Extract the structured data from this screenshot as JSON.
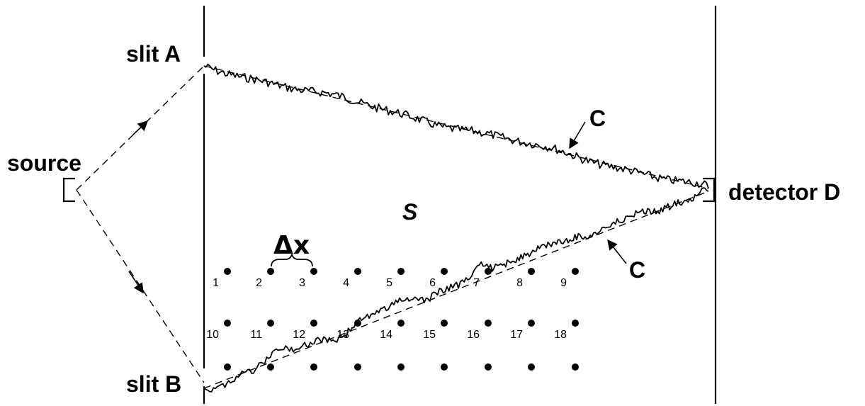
{
  "labels": {
    "slit_a": "slit A",
    "slit_b": "slit B",
    "source": "source",
    "detector": "detector D",
    "region": "S",
    "path_upper": "C",
    "path_lower": "C",
    "spacing": "Δx"
  },
  "grid": {
    "row1_numbers": [
      "1",
      "2",
      "3",
      "4",
      "5",
      "6",
      "7",
      "8",
      "9"
    ],
    "row2_numbers": [
      "10",
      "11",
      "12",
      "13",
      "14",
      "15",
      "16",
      "17",
      "18"
    ]
  }
}
